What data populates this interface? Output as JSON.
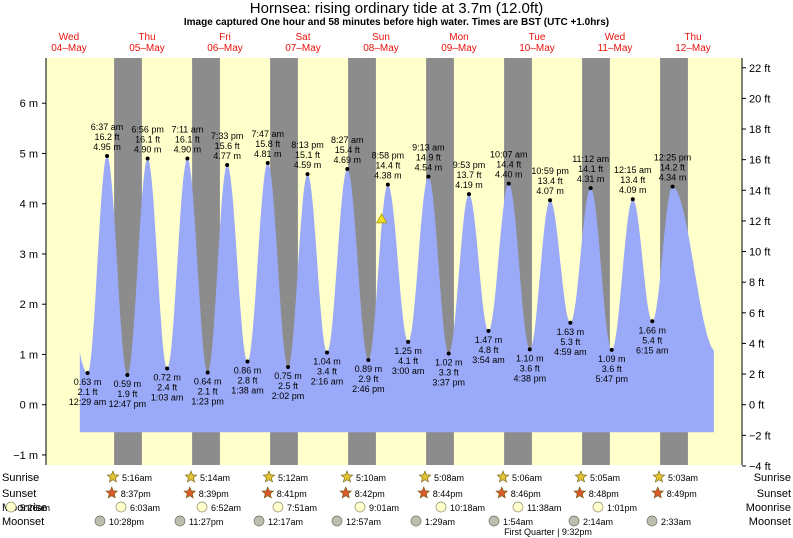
{
  "title": "Hornsea: rising  ordinary tide at 3.7m (12.0ft)",
  "subtitle": "Image captured One hour and 58 minutes before high water. Times are BST (UTC +1.0hrs)",
  "chart_data": {
    "type": "area",
    "ylabel_left_unit": "m",
    "ylabel_right_unit": "ft",
    "ylim_m": [
      -1.2,
      6.9
    ],
    "left_ticks": [
      "−1 m",
      "0 m",
      "1 m",
      "2 m",
      "3 m",
      "4 m",
      "5 m",
      "6 m"
    ],
    "left_tick_values": [
      -1,
      0,
      1,
      2,
      3,
      4,
      5,
      6
    ],
    "right_ticks": [
      "−4 ft",
      "−2 ft",
      "0 ft",
      "2 ft",
      "4 ft",
      "6 ft",
      "8 ft",
      "10 ft",
      "12 ft",
      "14 ft",
      "16 ft",
      "18 ft",
      "20 ft",
      "22 ft"
    ],
    "right_tick_values_ft": [
      -4,
      -2,
      0,
      2,
      4,
      6,
      8,
      10,
      12,
      14,
      16,
      18,
      20,
      22
    ],
    "days": [
      {
        "dow": "Wed",
        "date": "04–May"
      },
      {
        "dow": "Thu",
        "date": "05–May"
      },
      {
        "dow": "Fri",
        "date": "06–May"
      },
      {
        "dow": "Sat",
        "date": "07–May"
      },
      {
        "dow": "Sun",
        "date": "08–May"
      },
      {
        "dow": "Mon",
        "date": "09–May"
      },
      {
        "dow": "Tue",
        "date": "10–May"
      },
      {
        "dow": "Wed",
        "date": "11–May"
      },
      {
        "dow": "Thu",
        "date": "12–May"
      }
    ],
    "extremes": [
      {
        "kind": "low",
        "day": 0.52,
        "m": 0.63,
        "m_label": "0.63 m",
        "ft": "2.1 ft",
        "time": "12:29 am"
      },
      {
        "kind": "high",
        "day": 0.77,
        "m": 4.95,
        "m_label": "4.95 m",
        "ft": "16.2 ft",
        "time": "6:37 am"
      },
      {
        "kind": "low",
        "day": 1.03,
        "m": 0.59,
        "m_label": "0.59 m",
        "ft": "1.9 ft",
        "time": "12:47 pm"
      },
      {
        "kind": "high",
        "day": 1.29,
        "m": 4.9,
        "m_label": "4.90 m",
        "ft": "16.1 ft",
        "time": "6:56 pm"
      },
      {
        "kind": "low",
        "day": 1.54,
        "m": 0.72,
        "m_label": "0.72 m",
        "ft": "2.4 ft",
        "time": "1:03 am"
      },
      {
        "kind": "high",
        "day": 1.8,
        "m": 4.9,
        "m_label": "4.90 m",
        "ft": "16.1 ft",
        "time": "7:11 am"
      },
      {
        "kind": "low",
        "day": 2.06,
        "m": 0.64,
        "m_label": "0.64 m",
        "ft": "2.1 ft",
        "time": "1:23 pm"
      },
      {
        "kind": "high",
        "day": 2.31,
        "m": 4.77,
        "m_label": "4.77 m",
        "ft": "15.6 ft",
        "time": "7:33 pm"
      },
      {
        "kind": "low",
        "day": 2.57,
        "m": 0.86,
        "m_label": "0.86 m",
        "ft": "2.8 ft",
        "time": "1:38 am"
      },
      {
        "kind": "high",
        "day": 2.83,
        "m": 4.81,
        "m_label": "4.81 m",
        "ft": "15.8 ft",
        "time": "7:47 am"
      },
      {
        "kind": "low",
        "day": 3.09,
        "m": 0.75,
        "m_label": "0.75 m",
        "ft": "2.5 ft",
        "time": "2:02 pm"
      },
      {
        "kind": "high",
        "day": 3.34,
        "m": 4.59,
        "m_label": "4.59 m",
        "ft": "15.1 ft",
        "time": "8:13 pm"
      },
      {
        "kind": "low",
        "day": 3.59,
        "m": 1.04,
        "m_label": "1.04 m",
        "ft": "3.4 ft",
        "time": "2:16 am"
      },
      {
        "kind": "high",
        "day": 3.85,
        "m": 4.69,
        "m_label": "4.69 m",
        "ft": "15.4 ft",
        "time": "8:27 am"
      },
      {
        "kind": "low",
        "day": 4.12,
        "m": 0.89,
        "m_label": "0.89 m",
        "ft": "2.9 ft",
        "time": "2:46 pm"
      },
      {
        "kind": "high",
        "day": 4.37,
        "m": 4.38,
        "m_label": "4.38 m",
        "ft": "14.4 ft",
        "time": "8:58 pm"
      },
      {
        "kind": "low",
        "day": 4.63,
        "m": 1.25,
        "m_label": "1.25 m",
        "ft": "4.1 ft",
        "time": "3:00 am"
      },
      {
        "kind": "high",
        "day": 4.89,
        "m": 4.54,
        "m_label": "4.54 m",
        "ft": "14.9 ft",
        "time": "9:13 am"
      },
      {
        "kind": "low",
        "day": 5.15,
        "m": 1.02,
        "m_label": "1.02 m",
        "ft": "3.3 ft",
        "time": "3:37 pm"
      },
      {
        "kind": "high",
        "day": 5.41,
        "m": 4.19,
        "m_label": "4.19 m",
        "ft": "13.7 ft",
        "time": "9:53 pm"
      },
      {
        "kind": "low",
        "day": 5.66,
        "m": 1.47,
        "m_label": "1.47 m",
        "ft": "4.8 ft",
        "time": "3:54 am"
      },
      {
        "kind": "high",
        "day": 5.92,
        "m": 4.4,
        "m_label": "4.40 m",
        "ft": "14.4 ft",
        "time": "10:07 am"
      },
      {
        "kind": "low",
        "day": 6.19,
        "m": 1.1,
        "m_label": "1.10 m",
        "ft": "3.6 ft",
        "time": "4:38 pm"
      },
      {
        "kind": "high",
        "day": 6.45,
        "m": 4.07,
        "m_label": "4.07 m",
        "ft": "13.4 ft",
        "time": "10:59 pm"
      },
      {
        "kind": "low",
        "day": 6.71,
        "m": 1.63,
        "m_label": "1.63 m",
        "ft": "5.3 ft",
        "time": "4:59 am"
      },
      {
        "kind": "high",
        "day": 6.97,
        "m": 4.31,
        "m_label": "4.31 m",
        "ft": "14.1 ft",
        "time": "11:12 am"
      },
      {
        "kind": "low",
        "day": 7.24,
        "m": 1.09,
        "m_label": "1.09 m",
        "ft": "3.6 ft",
        "time": "5:47 pm"
      },
      {
        "kind": "high",
        "day": 7.51,
        "m": 4.09,
        "m_label": "4.09 m",
        "ft": "13.4 ft",
        "time": "12:15 am"
      },
      {
        "kind": "low",
        "day": 7.76,
        "m": 1.66,
        "m_label": "1.66 m",
        "ft": "5.4 ft",
        "time": "6:15 am"
      },
      {
        "kind": "high",
        "day": 8.02,
        "m": 4.34,
        "m_label": "4.34 m",
        "ft": "14.2 ft",
        "time": "12:25 pm"
      }
    ],
    "now_marker": {
      "day": 4.29,
      "m": 3.7
    },
    "sunrise": [
      "5:16am",
      "5:14am",
      "5:12am",
      "5:10am",
      "5:08am",
      "5:06am",
      "5:05am",
      "5:03am"
    ],
    "sunset": [
      "8:37pm",
      "8:39pm",
      "8:41pm",
      "8:42pm",
      "8:44pm",
      "8:46pm",
      "8:48pm",
      "8:49pm"
    ],
    "moonrise": [
      "5:26am",
      "6:03am",
      "6:52am",
      "7:51am",
      "9:01am",
      "10:18am",
      "11:38am",
      "1:01pm"
    ],
    "moonset": [
      "10:28pm",
      "11:27pm",
      "12:17am",
      "12:57am",
      "1:29am",
      "1:54am",
      "2:14am",
      "2:33am"
    ],
    "phase_note": "First Quarter | 9:32pm",
    "row_labels": {
      "sunrise": "Sunrise",
      "sunset": "Sunset",
      "moonrise": "Moonrise",
      "moonset": "Moonset"
    },
    "colors": {
      "day": "#ffffcc",
      "night": "#8c8c8c",
      "water": "#9aaaf8",
      "day_label": "#e8120c",
      "sun": "#e0c436",
      "sunset_star": "#d65a2a",
      "moonrise": "#ffffcc",
      "moonset": "#bdbdb0"
    }
  }
}
